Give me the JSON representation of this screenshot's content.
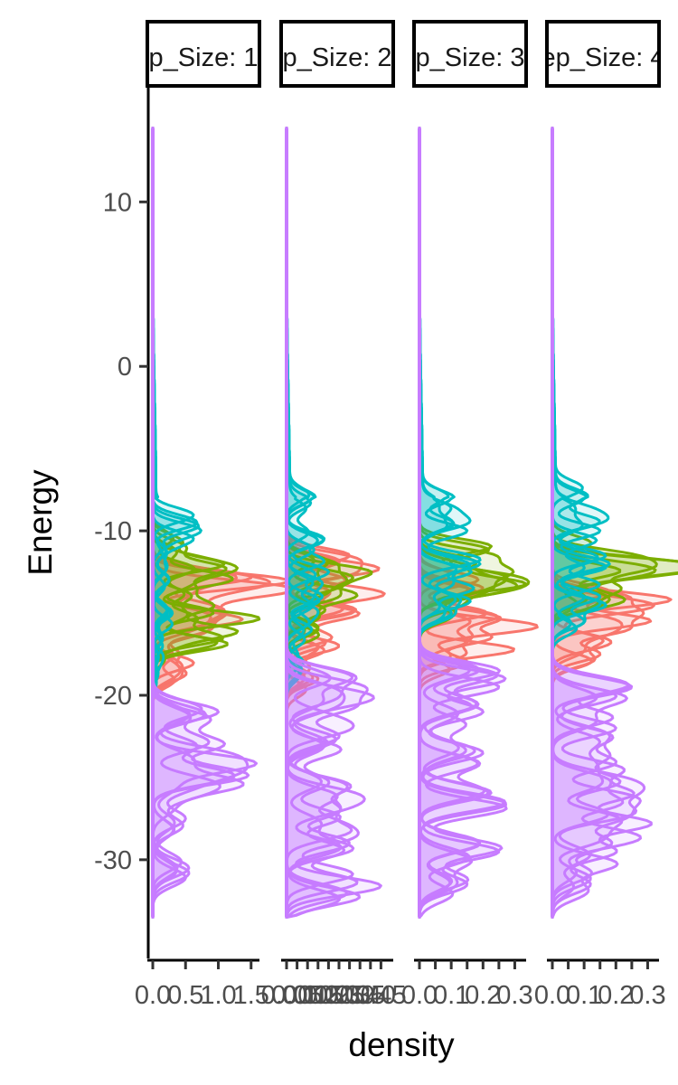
{
  "chart_data": {
    "type": "area",
    "orientation": "horizontal-density",
    "xlabel": "density",
    "ylabel": "Energy",
    "ylim": [
      -36,
      17
    ],
    "y_ticks": [
      10,
      0,
      -10,
      -20,
      -30
    ],
    "y_tick_labels": [
      "10",
      "0",
      "-10",
      "-20",
      "-30"
    ],
    "grid": false,
    "legend": "none",
    "colors": {
      "red": "#F8766D",
      "green": "#7CAE00",
      "cyan": "#00BFC4",
      "purple": "#C77CFF"
    },
    "panels": [
      {
        "strip_label": "p_Size: 1",
        "xlim": [
          0,
          1.6
        ],
        "x_ticks": [
          0,
          0.5,
          1,
          1.5
        ],
        "x_tick_labels": [
          "0.0",
          "0.5",
          "1.0",
          "1.5"
        ],
        "group_curves": {
          "cyan": [
            [
              -9.7,
              0.7
            ],
            [
              -11.2,
              0.2
            ],
            [
              -13,
              0.25
            ],
            [
              -15,
              0.3
            ],
            [
              -17,
              0.15
            ],
            [
              -18.7,
              0.08
            ]
          ],
          "green": [
            [
              -11,
              0.5
            ],
            [
              -12.3,
              1.1
            ],
            [
              -13.5,
              0.6
            ],
            [
              -14.6,
              0.9
            ],
            [
              -16.1,
              1.25
            ],
            [
              -17,
              0.3
            ]
          ],
          "red": [
            [
              -12.5,
              0.7
            ],
            [
              -13.2,
              1.45
            ],
            [
              -14,
              0.6
            ],
            [
              -15,
              1
            ],
            [
              -16,
              0.8
            ],
            [
              -17.5,
              0.4
            ],
            [
              -18.7,
              0.5
            ]
          ],
          "purple": [
            [
              -21,
              1.0
            ],
            [
              -23.6,
              1.05
            ],
            [
              -24.6,
              1.1
            ],
            [
              -25.6,
              0.5
            ],
            [
              -27.5,
              0.5
            ],
            [
              -30.5,
              0.55
            ]
          ]
        }
      },
      {
        "strip_label": "p_Size: 2",
        "xlim": [
          0,
          0.5
        ],
        "x_ticks": [
          0,
          0.05,
          0.1,
          0.15,
          0.2,
          0.25,
          0.3,
          0.35,
          0.4,
          0.45
        ],
        "x_tick_labels": [
          "0.00",
          "0.05",
          "0.10",
          "0.15",
          "0.20",
          "0.25",
          "0.30",
          "0.35",
          "0.40",
          "0.45"
        ],
        "group_curves": {
          "cyan": [
            [
              -8,
              0.12
            ],
            [
              -10.5,
              0.18
            ],
            [
              -12.5,
              0.2
            ],
            [
              -14,
              0.17
            ],
            [
              -16,
              0.12
            ],
            [
              -18,
              0.08
            ]
          ],
          "green": [
            [
              -12,
              0.22
            ],
            [
              -13,
              0.25
            ],
            [
              -14,
              0.23
            ],
            [
              -16,
              0.15
            ]
          ],
          "red": [
            [
              -11.5,
              0.3
            ],
            [
              -13,
              0.28
            ],
            [
              -14.8,
              0.33
            ],
            [
              -17,
              0.25
            ],
            [
              -19,
              0.15
            ]
          ],
          "purple": [
            [
              -19.5,
              0.35
            ],
            [
              -20.7,
              0.3
            ],
            [
              -22.5,
              0.25
            ],
            [
              -25.5,
              0.3
            ],
            [
              -27,
              0.25
            ],
            [
              -29,
              0.3
            ],
            [
              -31.6,
              0.45
            ]
          ]
        }
      },
      {
        "strip_label": "p_Size: 3",
        "xlim": [
          0,
          0.33
        ],
        "x_ticks": [
          0,
          0.05,
          0.1,
          0.15,
          0.2,
          0.25,
          0.3
        ],
        "x_tick_labels": [
          "0.0",
          "",
          "0.1",
          "",
          "0.2",
          "",
          "0.3"
        ],
        "group_curves": {
          "cyan": [
            [
              -8,
              0.1
            ],
            [
              -10,
              0.15
            ],
            [
              -12,
              0.19
            ],
            [
              -13.5,
              0.17
            ],
            [
              -15,
              0.1
            ]
          ],
          "green": [
            [
              -11.5,
              0.22
            ],
            [
              -12.5,
              0.26
            ],
            [
              -13.5,
              0.2
            ],
            [
              -14.5,
              0.12
            ]
          ],
          "red": [
            [
              -13.5,
              0.2
            ],
            [
              -15.3,
              0.25
            ],
            [
              -16.5,
              0.22
            ],
            [
              -18,
              0.15
            ]
          ],
          "purple": [
            [
              -19,
              0.27
            ],
            [
              -21,
              0.2
            ],
            [
              -23.5,
              0.2
            ],
            [
              -26.5,
              0.27
            ],
            [
              -29.5,
              0.25
            ],
            [
              -31.5,
              0.15
            ]
          ]
        }
      },
      {
        "strip_label": "ep_Size: 4",
        "xlim": [
          0,
          0.33
        ],
        "x_ticks": [
          0,
          0.05,
          0.1,
          0.15,
          0.2,
          0.25,
          0.3
        ],
        "x_tick_labels": [
          "0.0",
          "",
          "0.1",
          "",
          "0.2",
          "",
          "0.3"
        ],
        "group_curves": {
          "cyan": [
            [
              -8,
              0.1
            ],
            [
              -10,
              0.15
            ],
            [
              -12,
              0.18
            ],
            [
              -14,
              0.15
            ],
            [
              -15.5,
              0.1
            ]
          ],
          "green": [
            [
              -11.5,
              0.22
            ],
            [
              -12.3,
              0.26
            ],
            [
              -13.5,
              0.2
            ],
            [
              -14.5,
              0.12
            ]
          ],
          "red": [
            [
              -14,
              0.22
            ],
            [
              -15,
              0.25
            ],
            [
              -16,
              0.22
            ],
            [
              -17.5,
              0.15
            ]
          ],
          "purple": [
            [
              -19.5,
              0.25
            ],
            [
              -22,
              0.2
            ],
            [
              -24.5,
              0.22
            ],
            [
              -26,
              0.25
            ],
            [
              -27.8,
              0.31
            ],
            [
              -29.5,
              0.2
            ],
            [
              -31.5,
              0.12
            ]
          ]
        }
      }
    ]
  }
}
